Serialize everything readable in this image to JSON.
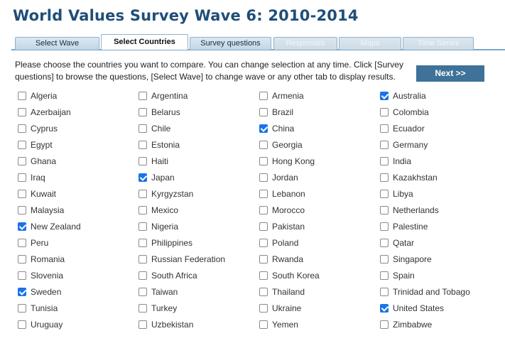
{
  "page": {
    "title": "World Values Survey Wave 6: 2010-2014"
  },
  "tabs": [
    {
      "label": "Select Wave",
      "state": "normal"
    },
    {
      "label": "Select Countries",
      "state": "active"
    },
    {
      "label": "Survey questions",
      "state": "normal"
    },
    {
      "label": "Responses",
      "state": "disabled"
    },
    {
      "label": "Maps",
      "state": "disabled"
    },
    {
      "label": "Time Series",
      "state": "disabled"
    }
  ],
  "instructions": "Please choose the countries you want to compare. You can change selection at any time. Click [Survey questions] to browse the questions, [Select Wave] to change wave or any other tab to display results.",
  "next_button": {
    "label": "Next >>"
  },
  "colors": {
    "title": "#1f4e79",
    "next_button": "#3e7298",
    "checked": "#1a73e8"
  },
  "countries": [
    {
      "name": "Algeria",
      "checked": false
    },
    {
      "name": "Argentina",
      "checked": false
    },
    {
      "name": "Armenia",
      "checked": false
    },
    {
      "name": "Australia",
      "checked": true
    },
    {
      "name": "Azerbaijan",
      "checked": false
    },
    {
      "name": "Belarus",
      "checked": false
    },
    {
      "name": "Brazil",
      "checked": false
    },
    {
      "name": "Colombia",
      "checked": false
    },
    {
      "name": "Cyprus",
      "checked": false
    },
    {
      "name": "Chile",
      "checked": false
    },
    {
      "name": "China",
      "checked": true
    },
    {
      "name": "Ecuador",
      "checked": false
    },
    {
      "name": "Egypt",
      "checked": false
    },
    {
      "name": "Estonia",
      "checked": false
    },
    {
      "name": "Georgia",
      "checked": false
    },
    {
      "name": "Germany",
      "checked": false
    },
    {
      "name": "Ghana",
      "checked": false
    },
    {
      "name": "Haiti",
      "checked": false
    },
    {
      "name": "Hong Kong",
      "checked": false
    },
    {
      "name": "India",
      "checked": false
    },
    {
      "name": "Iraq",
      "checked": false
    },
    {
      "name": "Japan",
      "checked": true
    },
    {
      "name": "Jordan",
      "checked": false
    },
    {
      "name": "Kazakhstan",
      "checked": false
    },
    {
      "name": "Kuwait",
      "checked": false
    },
    {
      "name": "Kyrgyzstan",
      "checked": false
    },
    {
      "name": "Lebanon",
      "checked": false
    },
    {
      "name": "Libya",
      "checked": false
    },
    {
      "name": "Malaysia",
      "checked": false
    },
    {
      "name": "Mexico",
      "checked": false
    },
    {
      "name": "Morocco",
      "checked": false
    },
    {
      "name": "Netherlands",
      "checked": false
    },
    {
      "name": "New Zealand",
      "checked": true
    },
    {
      "name": "Nigeria",
      "checked": false
    },
    {
      "name": "Pakistan",
      "checked": false
    },
    {
      "name": "Palestine",
      "checked": false
    },
    {
      "name": "Peru",
      "checked": false
    },
    {
      "name": "Philippines",
      "checked": false
    },
    {
      "name": "Poland",
      "checked": false
    },
    {
      "name": "Qatar",
      "checked": false
    },
    {
      "name": "Romania",
      "checked": false
    },
    {
      "name": "Russian Federation",
      "checked": false
    },
    {
      "name": "Rwanda",
      "checked": false
    },
    {
      "name": "Singapore",
      "checked": false
    },
    {
      "name": "Slovenia",
      "checked": false
    },
    {
      "name": "South Africa",
      "checked": false
    },
    {
      "name": "South Korea",
      "checked": false
    },
    {
      "name": "Spain",
      "checked": false
    },
    {
      "name": "Sweden",
      "checked": true
    },
    {
      "name": "Taiwan",
      "checked": false
    },
    {
      "name": "Thailand",
      "checked": false
    },
    {
      "name": "Trinidad and Tobago",
      "checked": false
    },
    {
      "name": "Tunisia",
      "checked": false
    },
    {
      "name": "Turkey",
      "checked": false
    },
    {
      "name": "Ukraine",
      "checked": false
    },
    {
      "name": "United States",
      "checked": true
    },
    {
      "name": "Uruguay",
      "checked": false
    },
    {
      "name": "Uzbekistan",
      "checked": false
    },
    {
      "name": "Yemen",
      "checked": false
    },
    {
      "name": "Zimbabwe",
      "checked": false
    }
  ]
}
